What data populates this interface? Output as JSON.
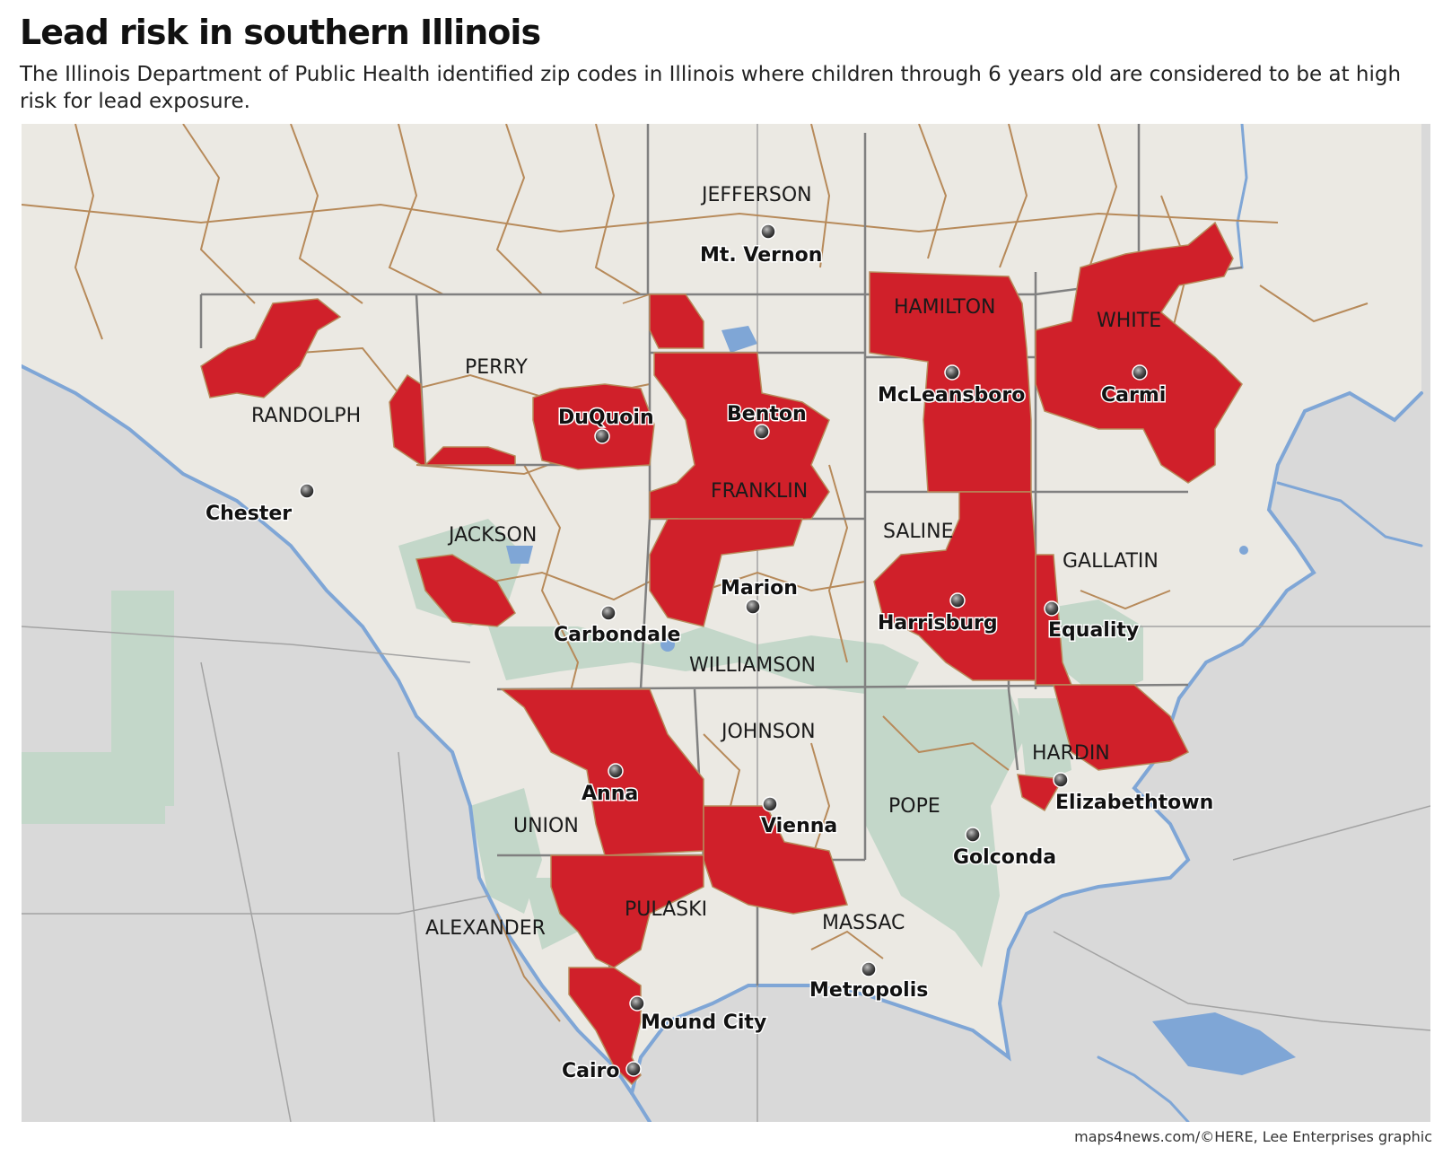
{
  "header": {
    "title": "Lead risk in southern Illinois",
    "subtitle": "The Illinois Department of Public Health identified zip codes in Illinois where children through 6 years old are considered to be at high risk for lead exposure."
  },
  "credit": "maps4news.com/©HERE, Lee Enterprises graphic",
  "colors": {
    "high_risk": "#d0202a",
    "land": "#ebe9e3",
    "outside_land": "#d7d7d7",
    "forest": "#c3d7c9",
    "water": "#7fa6d6",
    "zip_border": "#b78a5a",
    "county_border": "#808080"
  },
  "counties": [
    "JEFFERSON",
    "HAMILTON",
    "WHITE",
    "PERRY",
    "RANDOLPH",
    "FRANKLIN",
    "JACKSON",
    "SALINE",
    "GALLATIN",
    "WILLIAMSON",
    "JOHNSON",
    "HARDIN",
    "POPE",
    "UNION",
    "PULASKI",
    "ALEXANDER",
    "MASSAC"
  ],
  "cities": [
    "Mt. Vernon",
    "McLeansboro",
    "Carmi",
    "DuQuoin",
    "Benton",
    "Chester",
    "Marion",
    "Carbondale",
    "Harrisburg",
    "Equality",
    "Anna",
    "Vienna",
    "Elizabethtown",
    "Golconda",
    "Metropolis",
    "Mound City",
    "Cairo"
  ]
}
